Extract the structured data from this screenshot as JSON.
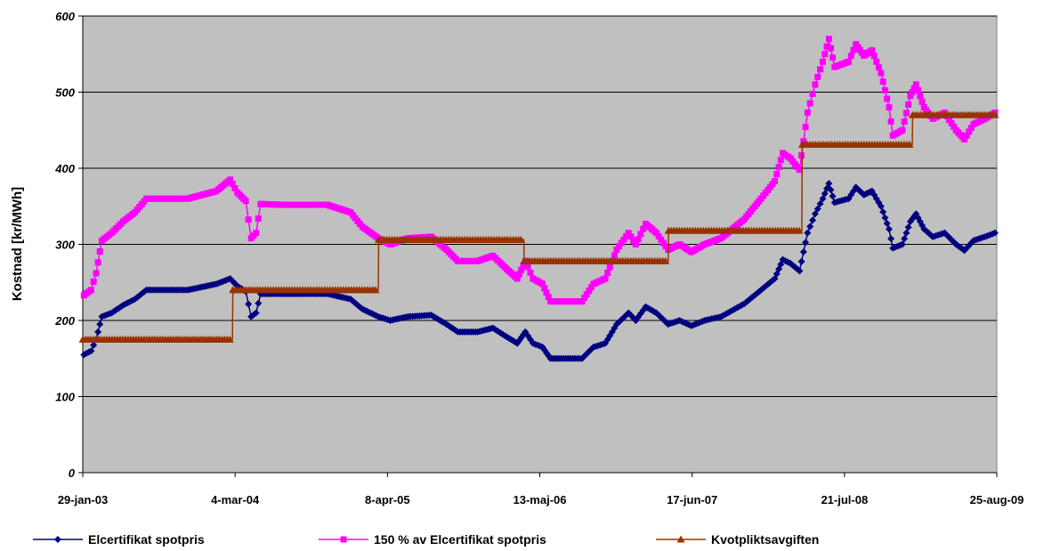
{
  "chart_data": {
    "type": "line",
    "ylabel": "Kostnad [kr/MWh]",
    "xlabel": "",
    "ylim": [
      0,
      600
    ],
    "yticks": [
      0,
      100,
      200,
      300,
      400,
      500,
      600
    ],
    "xrange": [
      "2003-01-29",
      "2009-08-25"
    ],
    "xticks": [
      "29-jan-03",
      "4-mar-04",
      "8-apr-05",
      "13-maj-06",
      "17-jun-07",
      "21-jul-08",
      "25-aug-09"
    ],
    "grid": true,
    "plot_background": "#c0c0c0",
    "legend_position": "bottom",
    "series": [
      {
        "name": "Elcertifikat spotpris",
        "color": "#000080",
        "marker": "diamond",
        "points": [
          [
            "2003-02-01",
            155
          ],
          [
            "2003-02-20",
            160
          ],
          [
            "2003-03-05",
            175
          ],
          [
            "2003-03-20",
            205
          ],
          [
            "2003-04-15",
            210
          ],
          [
            "2003-05-15",
            220
          ],
          [
            "2003-06-15",
            228
          ],
          [
            "2003-07-15",
            240
          ],
          [
            "2003-09-01",
            240
          ],
          [
            "2003-11-01",
            240
          ],
          [
            "2004-01-15",
            248
          ],
          [
            "2004-02-20",
            255
          ],
          [
            "2004-03-10",
            245
          ],
          [
            "2004-04-01",
            238
          ],
          [
            "2004-04-15",
            205
          ],
          [
            "2004-04-28",
            210
          ],
          [
            "2004-05-10",
            235
          ],
          [
            "2004-07-01",
            235
          ],
          [
            "2004-09-01",
            235
          ],
          [
            "2004-11-01",
            235
          ],
          [
            "2005-01-01",
            228
          ],
          [
            "2005-02-01",
            215
          ],
          [
            "2005-03-15",
            205
          ],
          [
            "2005-04-15",
            200
          ],
          [
            "2005-06-01",
            205
          ],
          [
            "2005-08-01",
            207
          ],
          [
            "2005-09-10",
            195
          ],
          [
            "2005-10-10",
            185
          ],
          [
            "2005-12-01",
            185
          ],
          [
            "2006-01-10",
            190
          ],
          [
            "2006-02-10",
            180
          ],
          [
            "2006-03-15",
            170
          ],
          [
            "2006-04-05",
            185
          ],
          [
            "2006-04-25",
            170
          ],
          [
            "2006-05-20",
            165
          ],
          [
            "2006-06-10",
            150
          ],
          [
            "2006-08-01",
            150
          ],
          [
            "2006-09-01",
            150
          ],
          [
            "2006-10-01",
            165
          ],
          [
            "2006-11-01",
            170
          ],
          [
            "2006-12-01",
            195
          ],
          [
            "2007-01-01",
            210
          ],
          [
            "2007-01-20",
            200
          ],
          [
            "2007-02-15",
            218
          ],
          [
            "2007-03-15",
            210
          ],
          [
            "2007-04-15",
            195
          ],
          [
            "2007-05-15",
            200
          ],
          [
            "2007-06-15",
            193
          ],
          [
            "2007-07-20",
            200
          ],
          [
            "2007-09-01",
            205
          ],
          [
            "2007-11-01",
            222
          ],
          [
            "2007-12-15",
            240
          ],
          [
            "2008-01-20",
            255
          ],
          [
            "2008-02-10",
            280
          ],
          [
            "2008-03-01",
            275
          ],
          [
            "2008-03-25",
            265
          ],
          [
            "2008-04-15",
            315
          ],
          [
            "2008-05-05",
            340
          ],
          [
            "2008-05-25",
            360
          ],
          [
            "2008-06-10",
            380
          ],
          [
            "2008-06-25",
            355
          ],
          [
            "2008-08-01",
            360
          ],
          [
            "2008-08-20",
            375
          ],
          [
            "2008-09-10",
            365
          ],
          [
            "2008-10-01",
            370
          ],
          [
            "2008-10-25",
            350
          ],
          [
            "2008-11-15",
            320
          ],
          [
            "2008-11-25",
            295
          ],
          [
            "2008-12-20",
            300
          ],
          [
            "2009-01-10",
            330
          ],
          [
            "2009-01-25",
            340
          ],
          [
            "2009-02-15",
            320
          ],
          [
            "2009-03-10",
            310
          ],
          [
            "2009-04-10",
            315
          ],
          [
            "2009-05-10",
            300
          ],
          [
            "2009-06-01",
            292
          ],
          [
            "2009-06-25",
            305
          ],
          [
            "2009-07-25",
            310
          ],
          [
            "2009-08-20",
            315
          ]
        ]
      },
      {
        "name": "150 % av Elcertifikat spotpris",
        "color": "#ff00ff",
        "marker": "square",
        "points": [
          [
            "2003-02-01",
            233
          ],
          [
            "2003-02-20",
            240
          ],
          [
            "2003-03-05",
            262
          ],
          [
            "2003-03-20",
            305
          ],
          [
            "2003-04-15",
            315
          ],
          [
            "2003-05-15",
            330
          ],
          [
            "2003-06-15",
            342
          ],
          [
            "2003-07-15",
            360
          ],
          [
            "2003-09-01",
            360
          ],
          [
            "2003-11-01",
            360
          ],
          [
            "2004-01-15",
            370
          ],
          [
            "2004-02-20",
            385
          ],
          [
            "2004-03-10",
            368
          ],
          [
            "2004-04-01",
            357
          ],
          [
            "2004-04-15",
            308
          ],
          [
            "2004-04-28",
            315
          ],
          [
            "2004-05-10",
            353
          ],
          [
            "2004-07-01",
            352
          ],
          [
            "2004-09-01",
            352
          ],
          [
            "2004-11-01",
            352
          ],
          [
            "2005-01-01",
            342
          ],
          [
            "2005-02-01",
            323
          ],
          [
            "2005-03-15",
            308
          ],
          [
            "2005-04-15",
            300
          ],
          [
            "2005-06-01",
            308
          ],
          [
            "2005-08-01",
            310
          ],
          [
            "2005-09-10",
            293
          ],
          [
            "2005-10-10",
            278
          ],
          [
            "2005-12-01",
            278
          ],
          [
            "2006-01-10",
            285
          ],
          [
            "2006-02-10",
            270
          ],
          [
            "2006-03-15",
            255
          ],
          [
            "2006-04-05",
            278
          ],
          [
            "2006-04-25",
            255
          ],
          [
            "2006-05-20",
            248
          ],
          [
            "2006-06-10",
            225
          ],
          [
            "2006-08-01",
            225
          ],
          [
            "2006-09-01",
            225
          ],
          [
            "2006-10-01",
            248
          ],
          [
            "2006-11-01",
            255
          ],
          [
            "2006-12-01",
            293
          ],
          [
            "2007-01-01",
            315
          ],
          [
            "2007-01-20",
            300
          ],
          [
            "2007-02-15",
            327
          ],
          [
            "2007-03-15",
            315
          ],
          [
            "2007-04-15",
            293
          ],
          [
            "2007-05-15",
            300
          ],
          [
            "2007-06-15",
            290
          ],
          [
            "2007-07-20",
            300
          ],
          [
            "2007-09-01",
            308
          ],
          [
            "2007-11-01",
            333
          ],
          [
            "2007-12-15",
            360
          ],
          [
            "2008-01-20",
            383
          ],
          [
            "2008-02-10",
            420
          ],
          [
            "2008-03-01",
            413
          ],
          [
            "2008-03-25",
            398
          ],
          [
            "2008-04-15",
            473
          ],
          [
            "2008-05-05",
            510
          ],
          [
            "2008-05-25",
            540
          ],
          [
            "2008-06-10",
            570
          ],
          [
            "2008-06-25",
            533
          ],
          [
            "2008-08-01",
            540
          ],
          [
            "2008-08-20",
            563
          ],
          [
            "2008-09-10",
            548
          ],
          [
            "2008-10-01",
            555
          ],
          [
            "2008-10-25",
            525
          ],
          [
            "2008-11-15",
            480
          ],
          [
            "2008-11-25",
            443
          ],
          [
            "2008-12-20",
            450
          ],
          [
            "2009-01-10",
            495
          ],
          [
            "2009-01-25",
            510
          ],
          [
            "2009-02-15",
            480
          ],
          [
            "2009-03-10",
            465
          ],
          [
            "2009-04-10",
            473
          ],
          [
            "2009-05-10",
            450
          ],
          [
            "2009-06-01",
            438
          ],
          [
            "2009-06-25",
            458
          ],
          [
            "2009-07-25",
            465
          ],
          [
            "2009-08-20",
            473
          ]
        ]
      },
      {
        "name": "Kvotpliktsavgiften",
        "color": "#993300",
        "marker": "triangle",
        "points": [
          [
            "2003-01-29",
            175
          ],
          [
            "2004-02-26",
            175
          ],
          [
            "2004-02-27",
            240
          ],
          [
            "2005-03-15",
            240
          ],
          [
            "2005-03-16",
            306
          ],
          [
            "2006-04-01",
            306
          ],
          [
            "2006-04-02",
            278
          ],
          [
            "2007-04-15",
            278
          ],
          [
            "2007-04-16",
            318
          ],
          [
            "2008-03-31",
            318
          ],
          [
            "2008-04-01",
            431
          ],
          [
            "2009-01-15",
            431
          ],
          [
            "2009-01-16",
            470
          ],
          [
            "2009-08-20",
            470
          ]
        ]
      }
    ]
  }
}
